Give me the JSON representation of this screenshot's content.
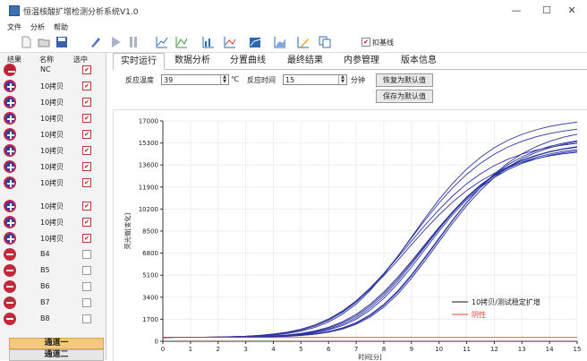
{
  "window": {
    "title": "恒温核酸扩增检测分析系统V1.0",
    "minimize": "—",
    "maximize": "☐",
    "close": "✕"
  },
  "menu": [
    "文件",
    "分析",
    "帮助"
  ],
  "toolbar": {
    "icons": [
      "new-file-icon",
      "open-folder-icon",
      "save-icon",
      "brush-icon",
      "play-icon",
      "pause-icon",
      "chart-up-icon",
      "chart-dual-icon",
      "chart-bars-icon",
      "chart-line-icon",
      "chart-fill-icon",
      "chart-area-icon",
      "chart-edit-icon",
      "copy-icon"
    ],
    "baseline_checked": true,
    "baseline_label": "扣基线"
  },
  "sidebar": {
    "headers": {
      "result": "结果",
      "name": "名称",
      "selected": "选中"
    },
    "rows": [
      {
        "result": "negative",
        "name": "NC",
        "checked": true
      },
      {
        "result": "positive",
        "name": "10拷贝",
        "checked": true
      },
      {
        "result": "positive",
        "name": "10拷贝",
        "checked": true
      },
      {
        "result": "positive",
        "name": "10拷贝",
        "checked": true
      },
      {
        "result": "positive",
        "name": "10拷贝",
        "checked": true
      },
      {
        "result": "positive",
        "name": "10拷贝",
        "checked": true
      },
      {
        "result": "positive",
        "name": "10拷贝",
        "checked": true
      },
      {
        "result": "positive",
        "name": "10拷贝",
        "checked": true
      },
      {
        "result": "positive",
        "name": "10拷贝",
        "checked": true
      },
      {
        "result": "positive",
        "name": "10拷贝",
        "checked": true
      },
      {
        "result": "positive",
        "name": "10拷贝",
        "checked": true
      },
      {
        "result": "negative",
        "name": "B4",
        "checked": false
      },
      {
        "result": "negative",
        "name": "B5",
        "checked": false
      },
      {
        "result": "negative",
        "name": "B6",
        "checked": false
      },
      {
        "result": "negative",
        "name": "B7",
        "checked": false
      },
      {
        "result": "negative",
        "name": "B8",
        "checked": false
      }
    ],
    "channels": [
      "通道一",
      "通道二"
    ]
  },
  "tabs": [
    "实时运行",
    "数据分析",
    "分置曲线",
    "最终结果",
    "内参管理",
    "版本信息"
  ],
  "active_tab": "实时运行",
  "controls": {
    "temp_label": "反应温度",
    "temp_value": "39",
    "temp_unit": "℃",
    "time_label": "反应时间",
    "time_value": "15",
    "time_unit": "分钟",
    "restore_default": "恢复为默认值",
    "save_default": "保存为默认值"
  },
  "colors": {
    "positive_curve": "#2b33a0",
    "negative_curve": "#e0473a",
    "accent_channel": "#f5c97a"
  },
  "chart_data": {
    "type": "line",
    "xlabel": "时间[分]",
    "ylabel": "荧光值[变化]",
    "xlim": [
      0,
      15
    ],
    "ylim": [
      0,
      17000
    ],
    "xticks": [
      0,
      1,
      2,
      3,
      4,
      5,
      6,
      7,
      8,
      9,
      10,
      11,
      12,
      13,
      14,
      15
    ],
    "yticks": [
      0,
      1700,
      3400,
      5100,
      6800,
      8500,
      10200,
      11900,
      13600,
      15300,
      17000
    ],
    "legend": [
      {
        "label": "10拷贝/测试稳定扩增",
        "color": "#111111"
      },
      {
        "label": "阴性",
        "color": "#e0473a"
      }
    ],
    "legend_position": "bottom-right",
    "grid": true,
    "x": [
      0,
      0.5,
      1,
      1.5,
      2,
      2.5,
      3,
      3.5,
      4,
      4.5,
      5,
      5.5,
      6,
      6.5,
      7,
      7.5,
      8,
      8.5,
      9,
      9.5,
      10,
      10.5,
      11,
      11.5,
      12,
      12.5,
      13,
      13.5,
      14,
      14.5,
      15
    ],
    "series": [
      {
        "values": [
          300,
          304,
          310,
          319,
          333,
          357,
          395,
          455,
          552,
          700,
          922,
          1244,
          1694,
          2295,
          3062,
          3994,
          5064,
          6235,
          7447,
          8638,
          9756,
          10762,
          11633,
          12363,
          12957,
          13429,
          13798,
          14082,
          14298,
          14461,
          14583
        ]
      },
      {
        "values": [
          300,
          304,
          310,
          319,
          333,
          357,
          395,
          456,
          553,
          704,
          929,
          1257,
          1718,
          2337,
          3131,
          4102,
          5222,
          6452,
          7727,
          8985,
          10167,
          11230,
          12151,
          12922,
          13549,
          14049,
          14440,
          14741,
          14970,
          15143,
          15273
        ]
      },
      {
        "values": [
          300,
          303,
          308,
          315,
          326,
          346,
          378,
          431,
          516,
          650,
          857,
          1166,
          1609,
          2219,
          3022,
          4029,
          5224,
          6561,
          7967,
          9363,
          10677,
          11859,
          12881,
          13737,
          14436,
          14994,
          15430,
          15767,
          16024,
          16217,
          16363
        ]
      },
      {
        "values": [
          300,
          303,
          307,
          313,
          323,
          339,
          367,
          411,
          484,
          601,
          784,
          1066,
          1484,
          2077,
          2876,
          3902,
          5141,
          6546,
          8038,
          9529,
          10937,
          12201,
          13290,
          14197,
          14931,
          15511,
          15962,
          16306,
          16569,
          16765,
          16912
        ]
      },
      {
        "values": [
          300,
          302,
          305,
          309,
          315,
          325,
          341,
          367,
          409,
          477,
          586,
          758,
          1023,
          1415,
          1972,
          2721,
          3671,
          4804,
          6073,
          7405,
          8725,
          9966,
          11075,
          12026,
          12812,
          13441,
          13934,
          14313,
          14599,
          14814,
          14974
        ]
      },
      {
        "values": [
          300,
          302,
          305,
          309,
          316,
          327,
          344,
          372,
          418,
          492,
          611,
          799,
          1083,
          1499,
          2079,
          2845,
          3801,
          4932,
          6185,
          7499,
          8803,
          10028,
          11126,
          12068,
          12849,
          13475,
          13967,
          14346,
          14634,
          14852,
          15014
        ]
      },
      {
        "values": [
          300,
          302,
          304,
          308,
          313,
          321,
          335,
          357,
          393,
          452,
          548,
          701,
          942,
          1307,
          1835,
          2562,
          3504,
          4645,
          5940,
          7312,
          8672,
          9937,
          11050,
          11990,
          12756,
          13362,
          13829,
          14185,
          14453,
          14652,
          14801
        ]
      },
      {
        "values": [
          300,
          302,
          304,
          307,
          312,
          319,
          331,
          350,
          382,
          434,
          519,
          657,
          876,
          1212,
          1705,
          2397,
          3309,
          4434,
          5729,
          7117,
          8499,
          9787,
          10916,
          11867,
          12639,
          13248,
          13717,
          14073,
          14339,
          14538,
          14685
        ]
      },
      {
        "values": [
          300,
          301,
          303,
          305,
          308,
          313,
          321,
          334,
          355,
          390,
          448,
          542,
          695,
          937,
          1312,
          1864,
          2634,
          3637,
          4856,
          6236,
          7694,
          9130,
          10465,
          11644,
          12640,
          13447,
          14080,
          14562,
          14925,
          15195,
          15395
        ]
      },
      {
        "values": [
          300,
          301,
          303,
          305,
          308,
          313,
          322,
          336,
          358,
          396,
          458,
          560,
          725,
          985,
          1385,
          1968,
          2772,
          3806,
          5047,
          6440,
          7902,
          9340,
          10681,
          11877,
          12907,
          13764,
          14458,
          15003,
          15423,
          15741,
          15979
        ]
      },
      {
        "values": [
          300,
          301,
          303,
          305,
          308,
          314,
          323,
          338,
          363,
          405,
          472,
          581,
          756,
          1028,
          1440,
          2036,
          2848,
          3886,
          5124,
          6510,
          7963,
          9390,
          10712,
          11872,
          12844,
          13625,
          14232,
          14692,
          15035,
          15288,
          15473
        ]
      },
      {
        "name": "阴性",
        "values": [
          300,
          300,
          300,
          300,
          300,
          300,
          300,
          300,
          300,
          300,
          300,
          300,
          300,
          300,
          300,
          300,
          300,
          300,
          300,
          300,
          300,
          300,
          300,
          300,
          300,
          300,
          300,
          300,
          300,
          300,
          300
        ]
      }
    ]
  }
}
